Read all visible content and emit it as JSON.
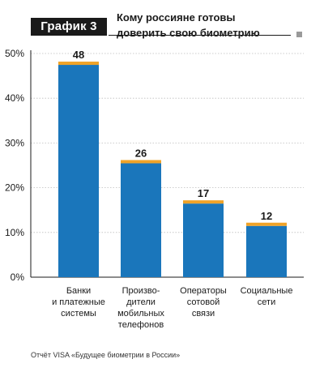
{
  "header": {
    "badge": "График 3",
    "title_lines": [
      "Кому россияне готовы",
      "доверить свою биометрию"
    ]
  },
  "source": "Отчёт VISA «Будущее биометрии в России»",
  "colors": {
    "bar": "#1a76bb",
    "bar_cap": "#f0a328",
    "axis": "#1a1a1a",
    "grid": "#bdbdbd",
    "badge_bg": "#1a1a1a",
    "corner_square": "#9a9a9a"
  },
  "chart_data": {
    "type": "bar",
    "categories": [
      [
        "Банки",
        "и платежные",
        "системы"
      ],
      [
        "Произво-",
        "дители",
        "мобильных",
        "телефонов"
      ],
      [
        "Операторы",
        "сотовой",
        "связи"
      ],
      [
        "Социальные",
        "сети"
      ]
    ],
    "values": [
      48,
      26,
      17,
      12
    ],
    "value_labels": [
      "48",
      "26",
      "17",
      "12"
    ],
    "y_ticks": [
      0,
      10,
      20,
      30,
      40,
      50
    ],
    "y_tick_labels": [
      "0%",
      "10%",
      "20%",
      "30%",
      "40%",
      "50%"
    ],
    "ylim": [
      0,
      50
    ],
    "grid": true,
    "legend": "none"
  }
}
